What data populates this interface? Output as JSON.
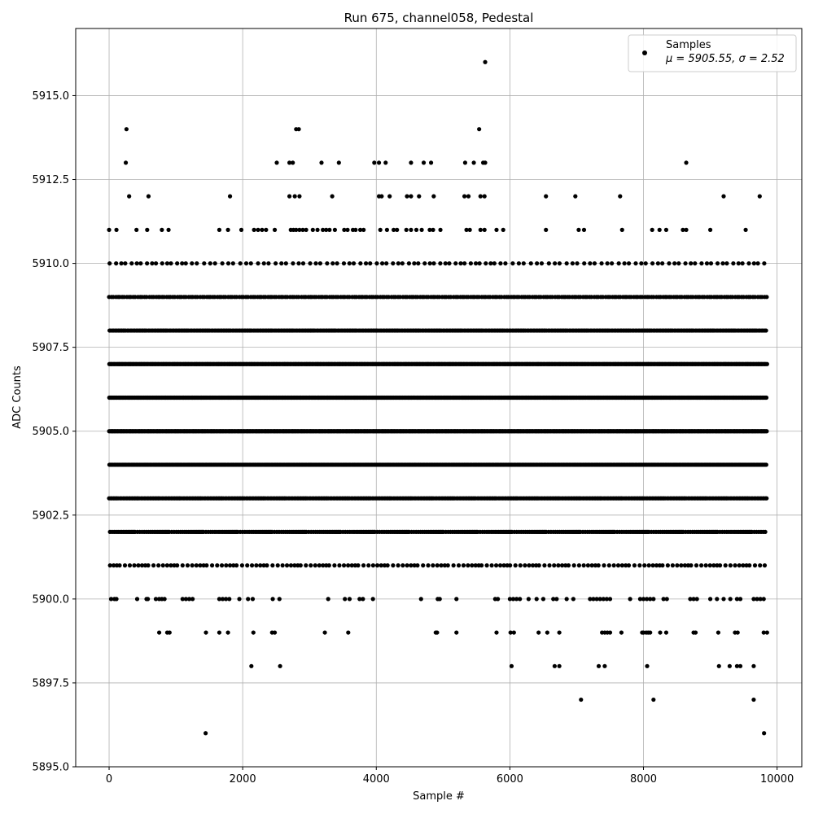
{
  "chart_data": {
    "type": "scatter",
    "title": "Run 675, channel058, Pedestal",
    "xlabel": "Sample #",
    "ylabel": "ADC Counts",
    "xlim": [
      -500,
      10370
    ],
    "ylim": [
      5895.0,
      5917.0
    ],
    "xticks": [
      0,
      2000,
      4000,
      6000,
      8000,
      10000
    ],
    "xtick_labels": [
      "0",
      "2000",
      "4000",
      "6000",
      "8000",
      "10000"
    ],
    "yticks": [
      5895.0,
      5897.5,
      5900.0,
      5902.5,
      5905.0,
      5907.5,
      5910.0,
      5912.5,
      5915.0
    ],
    "ytick_labels": [
      "5895.0",
      "5897.5",
      "5900.0",
      "5902.5",
      "5905.0",
      "5907.5",
      "5910.0",
      "5912.5",
      "5915.0"
    ],
    "grid": true,
    "legend": {
      "position": "upper right",
      "entries": [
        {
          "label": "Samples",
          "stats": "μ = 5905.55, σ = 2.52"
        }
      ]
    },
    "series": [
      {
        "name": "Samples",
        "color": "#000000",
        "marker": "circle",
        "x_range": [
          0,
          9850
        ],
        "n_samples": 9851,
        "bands": [
          {
            "y": 5896,
            "x": [
              1445,
              9805
            ]
          },
          {
            "y": 5897,
            "x": [
              7065,
              8150,
              9650
            ]
          },
          {
            "y": 5898,
            "x": [
              2130,
              2560,
              6025,
              6670,
              6740,
              7330,
              7420,
              8055,
              9130,
              9290,
              9400,
              9450,
              9650
            ]
          },
          {
            "y": 5899,
            "x": [
              750,
              870,
              905,
              1450,
              1650,
              1780,
              2160,
              2440,
              2480,
              3230,
              3580,
              4890,
              4910,
              5200,
              5800,
              6010,
              6060,
              6430,
              6560,
              6740,
              7380,
              7420,
              7460,
              7500,
              7670,
              7980,
              8000,
              8040,
              8070,
              8100,
              8250,
              8340,
              8750,
              8780,
              9120,
              9370,
              9410,
              9800,
              9850
            ]
          },
          {
            "y": 5900,
            "x": [
              30,
              80,
              110,
              420,
              560,
              580,
              700,
              750,
              790,
              830,
              1100,
              1150,
              1200,
              1250,
              1650,
              1700,
              1750,
              1800,
              1950,
              2080,
              2150,
              2450,
              2550,
              3280,
              3530,
              3600,
              3750,
              3800,
              3950,
              4670,
              4920,
              4950,
              5200,
              5780,
              5820,
              6000,
              6050,
              6100,
              6150,
              6280,
              6400,
              6500,
              6650,
              6700,
              6850,
              6950,
              7200,
              7250,
              7300,
              7350,
              7400,
              7450,
              7500,
              7800,
              7950,
              8000,
              8050,
              8100,
              8150,
              8300,
              8350,
              8700,
              8750,
              8800,
              9000,
              9100,
              9200,
              9300,
              9400,
              9450,
              9650,
              9700,
              9750,
              9800
            ]
          }
        ]
      }
    ]
  }
}
